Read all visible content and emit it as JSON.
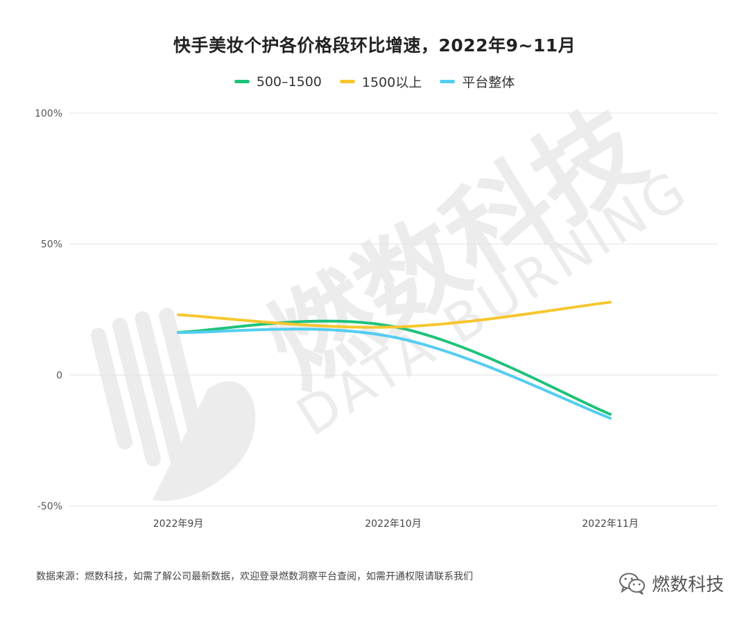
{
  "page": {
    "title": "快手美妆个护各价格段环比增速，2022年9~11月",
    "footer": "数据来源：燃数科技，如需了解公司最新数据，欢迎登录燃数洞察平台查阅，如需开通权限请联系我们",
    "brand": "燃数科技",
    "watermark_cn": "燃数科技",
    "watermark_en": "DATA BURNING"
  },
  "chart_data": {
    "type": "line",
    "categories": [
      "2022年9月",
      "2022年10月",
      "2022年11月"
    ],
    "yticks": [
      "100%",
      "50%",
      "0",
      "-50%"
    ],
    "ylim": [
      -50,
      100
    ],
    "grid": true,
    "legend_position": "top",
    "series": [
      {
        "name": "500–1500",
        "color": "#1fc27a",
        "values": [
          16.3,
          18.5,
          -15
        ]
      },
      {
        "name": "1500以上",
        "color": "#f7c62f",
        "values": [
          23,
          18.3,
          27.8
        ]
      },
      {
        "name": "平台整体",
        "color": "#54cdf0",
        "values": [
          16.2,
          14.5,
          -16.5
        ]
      }
    ]
  }
}
